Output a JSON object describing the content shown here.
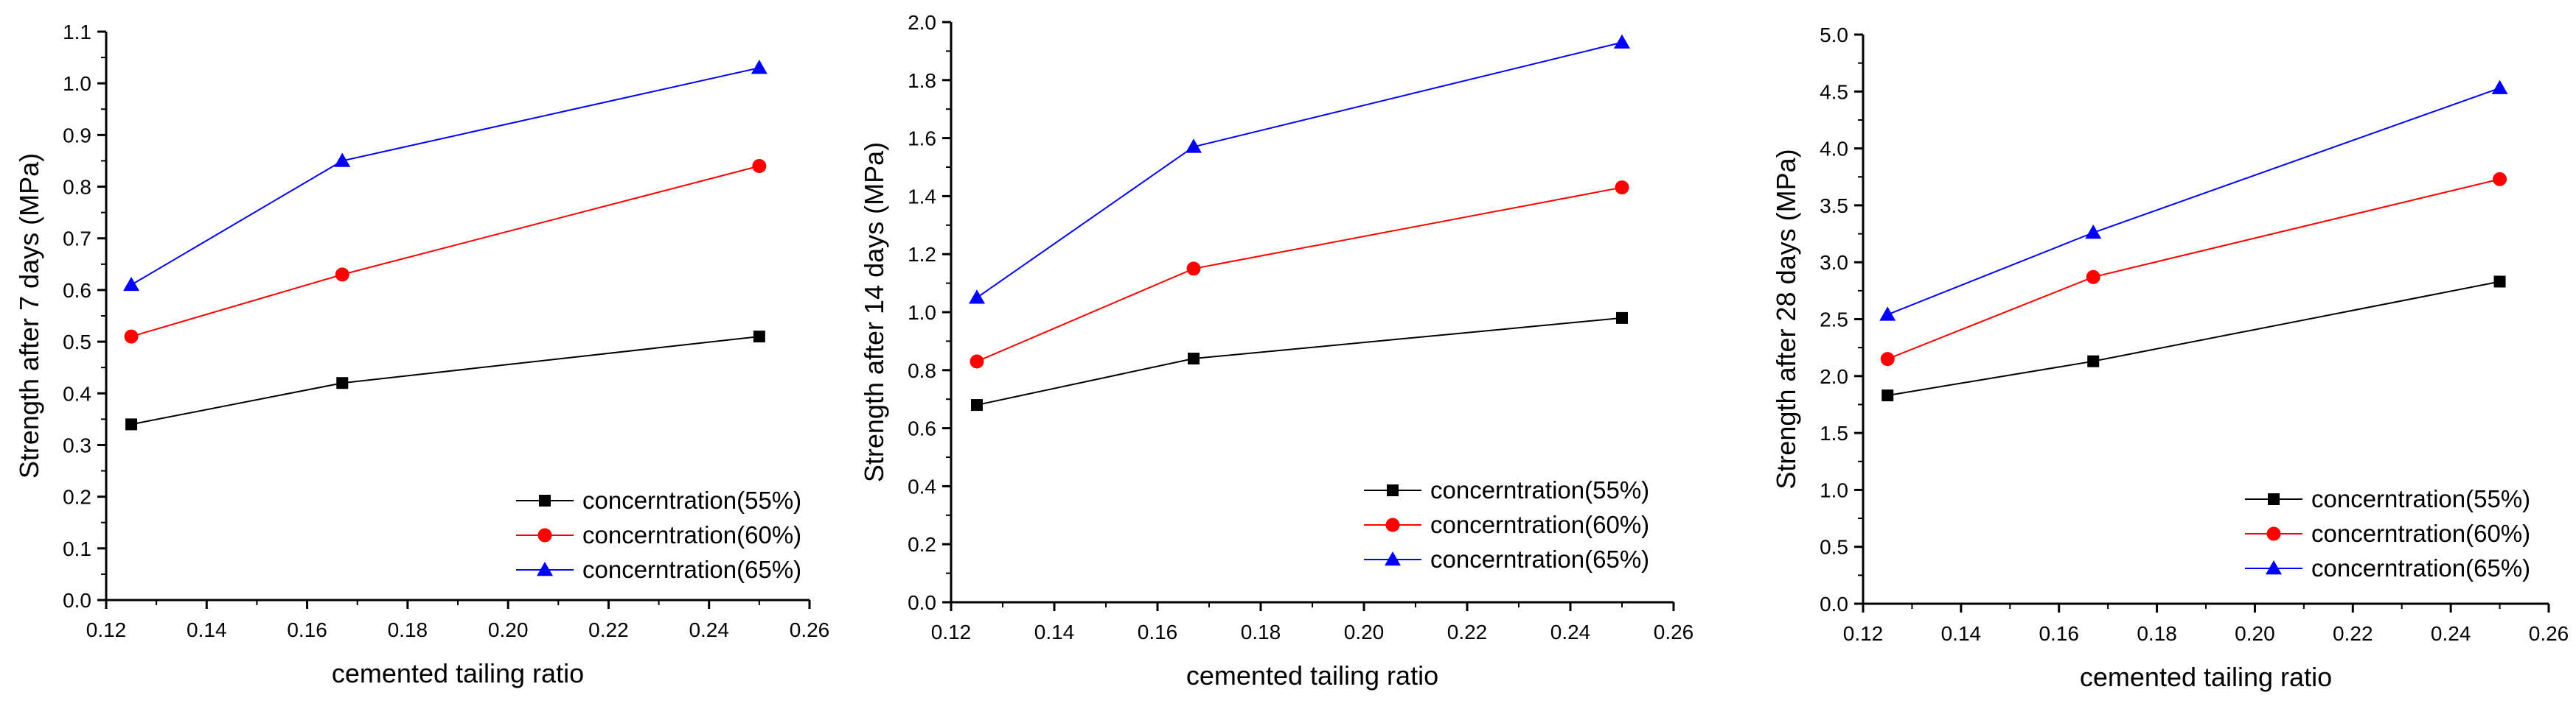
{
  "chart_data": [
    {
      "type": "line",
      "xlabel": "cemented tailing ratio",
      "ylabel": "Strength after 7 days (MPa)",
      "xlim": [
        0.12,
        0.26
      ],
      "ylim": [
        0.0,
        1.1
      ],
      "xticks": [
        "0.12",
        "0.14",
        "0.16",
        "0.18",
        "0.20",
        "0.22",
        "0.24",
        "0.26"
      ],
      "yticks": [
        "0.0",
        "0.1",
        "0.2",
        "0.3",
        "0.4",
        "0.5",
        "0.6",
        "0.7",
        "0.8",
        "0.9",
        "1.0",
        "1.1"
      ],
      "x": [
        0.125,
        0.167,
        0.25
      ],
      "series": [
        {
          "name": "concerntration(55%)",
          "values": [
            0.34,
            0.42,
            0.51
          ]
        },
        {
          "name": "concerntration(60%)",
          "values": [
            0.51,
            0.63,
            0.84
          ]
        },
        {
          "name": "concerntration(65%)",
          "values": [
            0.61,
            0.85,
            1.03
          ]
        }
      ]
    },
    {
      "type": "line",
      "xlabel": "cemented tailing ratio",
      "ylabel": "Strength after 14 days (MPa)",
      "xlim": [
        0.12,
        0.26
      ],
      "ylim": [
        0.0,
        2.0
      ],
      "xticks": [
        "0.12",
        "0.14",
        "0.16",
        "0.18",
        "0.20",
        "0.22",
        "0.24",
        "0.26"
      ],
      "yticks": [
        "0.0",
        "0.2",
        "0.4",
        "0.6",
        "0.8",
        "1.0",
        "1.2",
        "1.4",
        "1.6",
        "1.8",
        "2.0"
      ],
      "x": [
        0.125,
        0.167,
        0.25
      ],
      "series": [
        {
          "name": "concerntration(55%)",
          "values": [
            0.68,
            0.84,
            0.98
          ]
        },
        {
          "name": "concerntration(60%)",
          "values": [
            0.83,
            1.15,
            1.43
          ]
        },
        {
          "name": "concerntration(65%)",
          "values": [
            1.05,
            1.57,
            1.93
          ]
        }
      ]
    },
    {
      "type": "line",
      "xlabel": "cemented tailing ratio",
      "ylabel": "Strength after 28 days (MPa)",
      "xlim": [
        0.12,
        0.26
      ],
      "ylim": [
        0.0,
        5.0
      ],
      "xticks": [
        "0.12",
        "0.14",
        "0.16",
        "0.18",
        "0.20",
        "0.22",
        "0.24",
        "0.26"
      ],
      "yticks": [
        "0.0",
        "0.5",
        "1.0",
        "1.5",
        "2.0",
        "2.5",
        "3.0",
        "3.5",
        "4.0",
        "4.5",
        "5.0"
      ],
      "x": [
        0.125,
        0.167,
        0.25
      ],
      "series": [
        {
          "name": "concerntration(55%)",
          "values": [
            1.83,
            2.13,
            2.83
          ]
        },
        {
          "name": "concerntration(60%)",
          "values": [
            2.15,
            2.87,
            3.73
          ]
        },
        {
          "name": "concerntration(65%)",
          "values": [
            2.54,
            3.26,
            4.53
          ]
        }
      ]
    }
  ],
  "series_style": [
    {
      "color": "#000000",
      "marker": "square"
    },
    {
      "color": "#ff0000",
      "marker": "circle"
    },
    {
      "color": "#0000ff",
      "marker": "triangle"
    }
  ]
}
